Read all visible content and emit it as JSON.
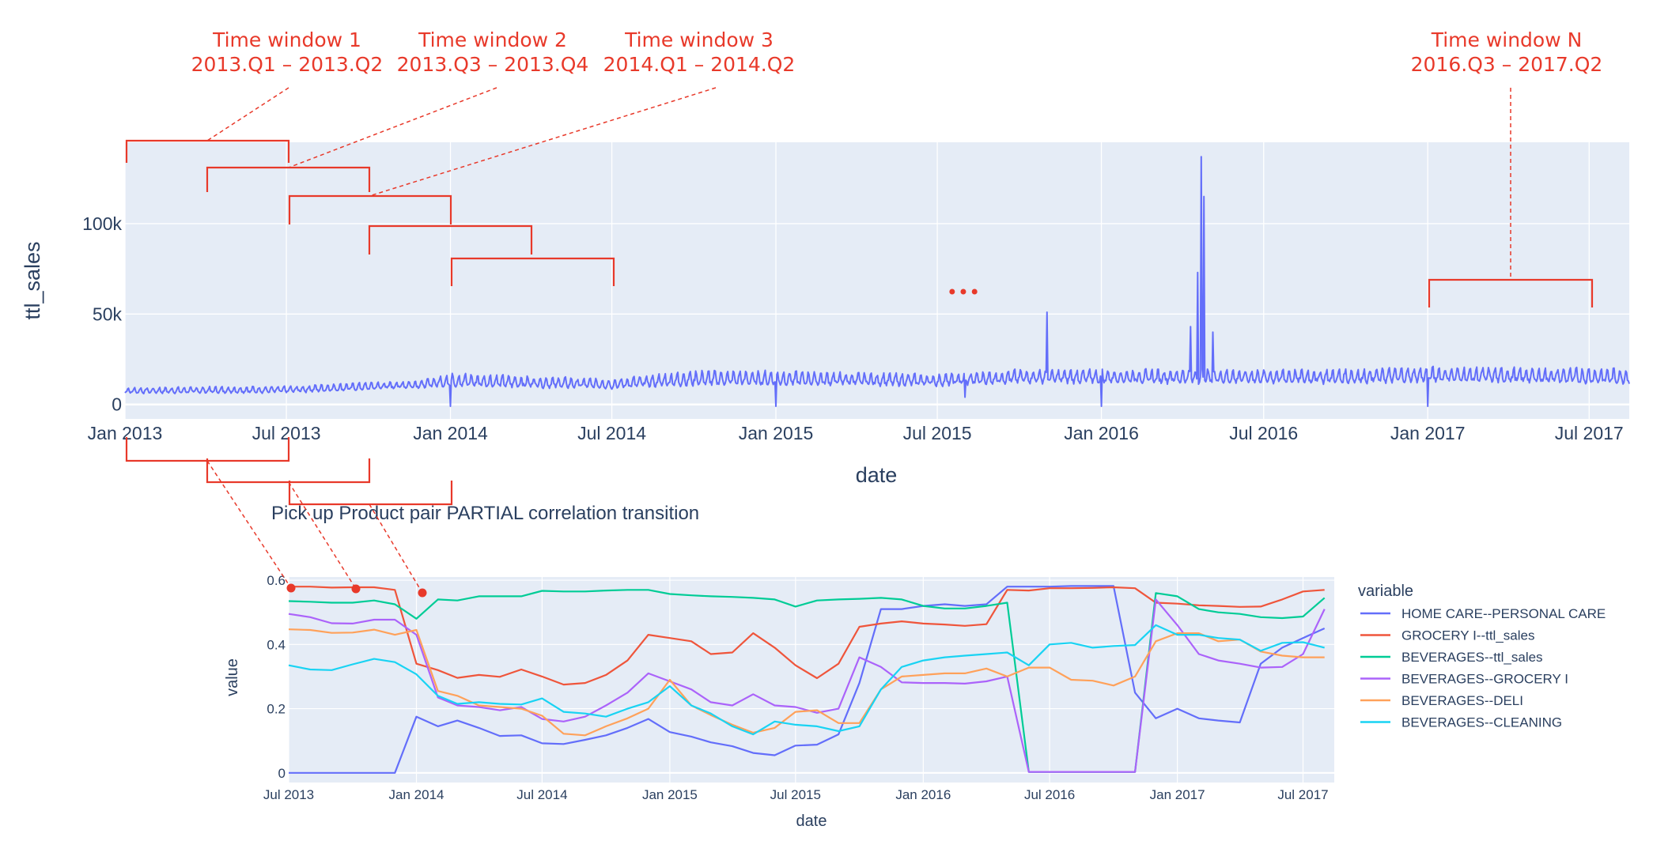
{
  "colors": {
    "plot_bg": "#e5ecf6",
    "grid": "#ffffff",
    "text": "#2a3f5f",
    "annotation": "#e8392a",
    "sales_line": "#636efa"
  },
  "annotations": {
    "windows": [
      {
        "title": "Time window 1",
        "range": "2013.Q1 – 2013.Q2"
      },
      {
        "title": "Time window 2",
        "range": "2013.Q3 – 2013.Q4"
      },
      {
        "title": "Time window 3",
        "range": "2014.Q1 – 2014.Q2"
      },
      {
        "title": "Time window N",
        "range": "2016.Q3 – 2017.Q2"
      }
    ],
    "ellipsis": "•••"
  },
  "chart_data": [
    {
      "type": "line",
      "title": "",
      "xlabel": "date",
      "ylabel": "ttl_sales",
      "x_range": [
        "2013-01-01",
        "2017-08-15"
      ],
      "ylim": [
        -8000,
        145000
      ],
      "x_ticks": [
        "Jan 2013",
        "Jul 2013",
        "Jan 2014",
        "Jul 2014",
        "Jan 2015",
        "Jul 2015",
        "Jan 2016",
        "Jul 2016",
        "Jan 2017",
        "Jul 2017"
      ],
      "y_ticks": [
        "0",
        "50k",
        "100k"
      ],
      "y_tick_values": [
        0,
        50000,
        100000
      ],
      "grid": true,
      "series": [
        {
          "baseline": [
            [
              "2013-01-01",
              7500
            ],
            [
              "2013-07-01",
              8000
            ],
            [
              "2013-12-01",
              11000
            ],
            [
              "2014-01-01",
              13000
            ],
            [
              "2014-04-01",
              12000
            ],
            [
              "2014-07-01",
              11000
            ],
            [
              "2014-10-01",
              14000
            ],
            [
              "2015-01-01",
              14000
            ],
            [
              "2015-07-01",
              13000
            ],
            [
              "2015-10-01",
              15000
            ],
            [
              "2016-01-01",
              15000
            ],
            [
              "2016-07-01",
              15000
            ],
            [
              "2016-10-01",
              15000
            ],
            [
              "2017-01-01",
              16000
            ],
            [
              "2017-08-15",
              15000
            ]
          ],
          "swing": [
            [
              "2013-01-01",
              3000
            ],
            [
              "2013-12-01",
              4000
            ],
            [
              "2014-01-01",
              7000
            ],
            [
              "2014-07-01",
              5000
            ],
            [
              "2014-10-01",
              8000
            ],
            [
              "2015-07-01",
              6000
            ],
            [
              "2015-10-01",
              7000
            ],
            [
              "2017-08-15",
              8000
            ]
          ],
          "spikes": [
            [
              "2013-12-28",
              16000
            ],
            [
              "2014-01-01",
              -1000
            ],
            [
              "2015-01-01",
              -1000
            ],
            [
              "2015-08-01",
              4000
            ],
            [
              "2015-11-01",
              51000
            ],
            [
              "2016-01-01",
              -1000
            ],
            [
              "2016-04-10",
              43000
            ],
            [
              "2016-04-18",
              73000
            ],
            [
              "2016-04-22",
              137000
            ],
            [
              "2016-04-25",
              115000
            ],
            [
              "2016-05-05",
              40000
            ],
            [
              "2017-01-01",
              -1000
            ]
          ]
        }
      ]
    },
    {
      "type": "line",
      "title": "Pick up Product pair PARTIAL correlation transition",
      "xlabel": "date",
      "ylabel": "value",
      "x_range": [
        "2013-07-01",
        "2017-08-15"
      ],
      "ylim": [
        -0.03,
        0.61
      ],
      "x_ticks": [
        "Jul 2013",
        "Jan 2014",
        "Jul 2014",
        "Jan 2015",
        "Jul 2015",
        "Jan 2016",
        "Jul 2016",
        "Jan 2017",
        "Jul 2017"
      ],
      "y_ticks": [
        "0",
        "0.2",
        "0.4",
        "0.6"
      ],
      "y_tick_values": [
        0,
        0.2,
        0.4,
        0.6
      ],
      "grid": true,
      "legend_title": "variable",
      "legend_placement": "right",
      "x": [
        "2013-07-01",
        "2013-08-01",
        "2013-09-01",
        "2013-10-01",
        "2013-11-01",
        "2013-12-01",
        "2014-01-01",
        "2014-02-01",
        "2014-03-01",
        "2014-04-01",
        "2014-05-01",
        "2014-06-01",
        "2014-07-01",
        "2014-08-01",
        "2014-09-01",
        "2014-10-01",
        "2014-11-01",
        "2014-12-01",
        "2015-01-01",
        "2015-02-01",
        "2015-03-01",
        "2015-04-01",
        "2015-05-01",
        "2015-06-01",
        "2015-07-01",
        "2015-08-01",
        "2015-09-01",
        "2015-10-01",
        "2015-11-01",
        "2015-12-01",
        "2016-01-01",
        "2016-02-01",
        "2016-03-01",
        "2016-04-01",
        "2016-05-01",
        "2016-06-01",
        "2016-07-01",
        "2016-08-01",
        "2016-09-01",
        "2016-10-01",
        "2016-11-01",
        "2016-12-01",
        "2017-01-01",
        "2017-02-01",
        "2017-03-01",
        "2017-04-01",
        "2017-05-01",
        "2017-06-01",
        "2017-07-01",
        "2017-08-01"
      ],
      "series": [
        {
          "name": "HOME CARE--PERSONAL CARE",
          "color": "#636efa",
          "values": [
            0,
            0,
            0,
            0,
            0,
            0,
            0.175,
            0.145,
            0.163,
            0.14,
            0.115,
            0.117,
            0.092,
            0.09,
            0.103,
            0.117,
            0.14,
            0.168,
            0.127,
            0.113,
            0.095,
            0.083,
            0.062,
            0.055,
            0.085,
            0.088,
            0.12,
            0.28,
            0.51,
            0.51,
            0.52,
            0.525,
            0.52,
            0.525,
            0.58,
            0.58,
            0.58,
            0.582,
            0.582,
            0.582,
            0.25,
            0.17,
            0.2,
            0.17,
            0.163,
            0.157,
            0.34,
            0.39,
            0.42,
            0.45
          ]
        },
        {
          "name": "GROCERY I--ttl_sales",
          "color": "#ef553b",
          "values": [
            0.58,
            0.58,
            0.577,
            0.578,
            0.578,
            0.57,
            0.34,
            0.32,
            0.296,
            0.305,
            0.299,
            0.322,
            0.3,
            0.275,
            0.28,
            0.305,
            0.35,
            0.43,
            0.42,
            0.41,
            0.37,
            0.375,
            0.435,
            0.39,
            0.335,
            0.295,
            0.34,
            0.455,
            0.465,
            0.472,
            0.465,
            0.462,
            0.458,
            0.463,
            0.57,
            0.568,
            0.575,
            0.575,
            0.576,
            0.578,
            0.575,
            0.53,
            0.527,
            0.522,
            0.52,
            0.517,
            0.518,
            0.54,
            0.565,
            0.57
          ]
        },
        {
          "name": "BEVERAGES--ttl_sales",
          "color": "#00cc96",
          "values": [
            0.535,
            0.533,
            0.53,
            0.53,
            0.537,
            0.525,
            0.48,
            0.54,
            0.537,
            0.55,
            0.55,
            0.55,
            0.567,
            0.565,
            0.565,
            0.568,
            0.57,
            0.57,
            0.557,
            0.553,
            0.55,
            0.548,
            0.545,
            0.54,
            0.518,
            0.537,
            0.54,
            0.542,
            0.545,
            0.54,
            0.52,
            0.512,
            0.512,
            0.52,
            0.53,
            0.003,
            0.003,
            0.003,
            0.003,
            0.003,
            0.003,
            0.56,
            0.55,
            0.51,
            0.5,
            0.495,
            0.485,
            0.482,
            0.487,
            0.545
          ]
        },
        {
          "name": "BEVERAGES--GROCERY I",
          "color": "#ab63fa",
          "values": [
            0.495,
            0.485,
            0.466,
            0.465,
            0.477,
            0.477,
            0.43,
            0.235,
            0.21,
            0.205,
            0.195,
            0.205,
            0.168,
            0.16,
            0.175,
            0.21,
            0.25,
            0.31,
            0.285,
            0.26,
            0.22,
            0.21,
            0.245,
            0.21,
            0.205,
            0.187,
            0.2,
            0.36,
            0.33,
            0.282,
            0.28,
            0.28,
            0.278,
            0.285,
            0.3,
            0.003,
            0.003,
            0.003,
            0.003,
            0.003,
            0.003,
            0.54,
            0.46,
            0.37,
            0.35,
            0.34,
            0.328,
            0.33,
            0.37,
            0.51
          ]
        },
        {
          "name": "BEVERAGES--DELI",
          "color": "#ffa15a",
          "values": [
            0.447,
            0.445,
            0.436,
            0.437,
            0.446,
            0.43,
            0.445,
            0.255,
            0.24,
            0.21,
            0.205,
            0.2,
            0.178,
            0.122,
            0.117,
            0.145,
            0.17,
            0.2,
            0.29,
            0.21,
            0.18,
            0.15,
            0.125,
            0.14,
            0.19,
            0.195,
            0.155,
            0.155,
            0.26,
            0.3,
            0.305,
            0.31,
            0.31,
            0.325,
            0.3,
            0.328,
            0.328,
            0.29,
            0.287,
            0.272,
            0.3,
            0.41,
            0.435,
            0.435,
            0.41,
            0.415,
            0.378,
            0.365,
            0.36,
            0.36
          ]
        },
        {
          "name": "BEVERAGES--CLEANING",
          "color": "#19d3f3",
          "values": [
            0.335,
            0.322,
            0.32,
            0.338,
            0.355,
            0.345,
            0.307,
            0.24,
            0.215,
            0.22,
            0.215,
            0.213,
            0.232,
            0.19,
            0.185,
            0.175,
            0.2,
            0.22,
            0.27,
            0.21,
            0.185,
            0.145,
            0.12,
            0.16,
            0.15,
            0.145,
            0.13,
            0.145,
            0.26,
            0.33,
            0.35,
            0.36,
            0.365,
            0.37,
            0.375,
            0.335,
            0.4,
            0.405,
            0.39,
            0.395,
            0.398,
            0.46,
            0.43,
            0.43,
            0.42,
            0.415,
            0.38,
            0.405,
            0.407,
            0.39
          ]
        }
      ]
    }
  ]
}
